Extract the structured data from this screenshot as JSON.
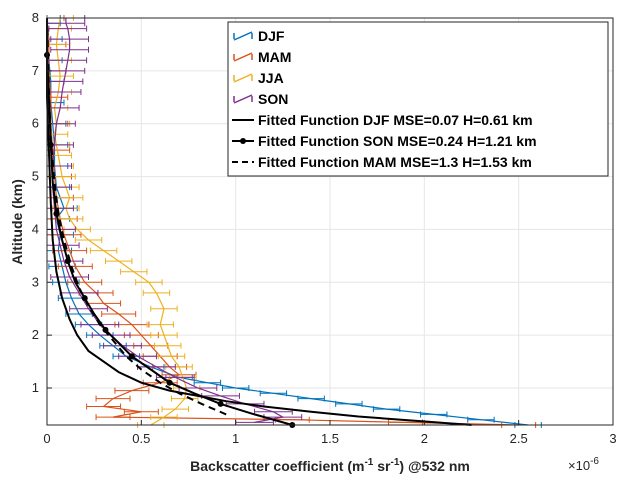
{
  "chart_data": {
    "type": "line",
    "xlabel": "Backscatter coefficient (m",
    "xlabel_sup1": "-1",
    "xlabel_mid": " sr",
    "xlabel_sup2": "-1",
    "xlabel_end": ") @532 nm",
    "ylabel": "Altitude (km)",
    "xlim": [
      0,
      3
    ],
    "ylim": [
      0.3,
      8
    ],
    "x_multiplier_base": "×10",
    "x_multiplier_exp": "-6",
    "x_ticks": [
      "0",
      "0.5",
      "1",
      "1.5",
      "2",
      "2.5",
      "3"
    ],
    "y_ticks": [
      "1",
      "2",
      "3",
      "4",
      "5",
      "6",
      "7",
      "8"
    ],
    "legend_position": "top-right",
    "colors": {
      "DJF": "#0072BD",
      "MAM": "#D95319",
      "JJA": "#EDB120",
      "SON": "#7E2F8E",
      "fit": "#000000"
    },
    "series": [
      {
        "name": "DJF",
        "key": "DJF",
        "style": "errorbar",
        "err": 0.07,
        "x": [
          2.55,
          2.3,
          2.05,
          1.8,
          1.6,
          1.4,
          1.2,
          1.0,
          0.85,
          0.7,
          0.55,
          0.42,
          0.35,
          0.28,
          0.22,
          0.17,
          0.13,
          0.1,
          0.08,
          0.06,
          0.07,
          0.05,
          0.09,
          0.05,
          0.04,
          0.04,
          0.03,
          0.02,
          0.02,
          0.01,
          0.01,
          0.0,
          0.0
        ],
        "y": [
          0.3,
          0.4,
          0.5,
          0.6,
          0.7,
          0.8,
          0.9,
          1.0,
          1.1,
          1.2,
          1.4,
          1.6,
          1.8,
          2.0,
          2.2,
          2.4,
          2.7,
          3.0,
          3.3,
          3.6,
          3.9,
          4.2,
          4.4,
          4.8,
          5.2,
          5.6,
          6.0,
          6.4,
          6.8,
          7.2,
          7.6,
          7.9,
          8.0
        ]
      },
      {
        "name": "MAM",
        "key": "MAM",
        "style": "errorbar",
        "err": 0.09,
        "x": [
          2.5,
          1.9,
          1.3,
          0.35,
          0.5,
          0.3,
          0.35,
          0.45,
          0.6,
          0.7,
          0.65,
          0.6,
          0.55,
          0.5,
          0.45,
          0.38,
          0.3,
          0.26,
          0.2,
          0.15,
          0.12,
          0.09,
          0.07,
          0.05,
          0.04,
          0.03,
          0.02,
          0.02,
          0.01,
          0.01,
          0.0
        ],
        "y": [
          0.3,
          0.35,
          0.4,
          0.45,
          0.55,
          0.65,
          0.8,
          0.95,
          1.1,
          1.25,
          1.4,
          1.6,
          1.8,
          2.0,
          2.2,
          2.4,
          2.6,
          2.8,
          3.0,
          3.3,
          3.6,
          3.9,
          4.2,
          4.6,
          5.0,
          5.5,
          6.0,
          6.5,
          7.0,
          7.5,
          8.0
        ]
      },
      {
        "name": "JJA",
        "key": "JJA",
        "style": "errorbar",
        "err": 0.07,
        "x": [
          0.55,
          0.62,
          0.68,
          0.73,
          0.74,
          0.72,
          0.7,
          0.66,
          0.64,
          0.62,
          0.6,
          0.62,
          0.58,
          0.54,
          0.46,
          0.38,
          0.3,
          0.22,
          0.16,
          0.12,
          0.1,
          0.12,
          0.1,
          0.08,
          0.07,
          0.06,
          0.05,
          0.04,
          0.05,
          0.04,
          0.06,
          0.07,
          0.06,
          0.05,
          0.06,
          0.07
        ],
        "y": [
          0.3,
          0.45,
          0.6,
          0.8,
          1.0,
          1.2,
          1.4,
          1.6,
          1.8,
          2.0,
          2.2,
          2.5,
          2.8,
          3.0,
          3.2,
          3.4,
          3.6,
          3.8,
          4.0,
          4.2,
          4.4,
          4.6,
          4.8,
          5.0,
          5.2,
          5.4,
          5.6,
          5.8,
          6.0,
          6.3,
          6.6,
          6.9,
          7.2,
          7.5,
          7.8,
          8.0
        ]
      },
      {
        "name": "SON",
        "key": "SON",
        "style": "errorbar",
        "err": 0.1,
        "x": [
          1.1,
          1.25,
          1.2,
          1.05,
          0.92,
          0.8,
          0.68,
          0.58,
          0.48,
          0.4,
          0.34,
          0.28,
          0.22,
          0.17,
          0.12,
          0.09,
          0.07,
          0.05,
          0.04,
          0.03,
          0.03,
          0.04,
          0.05,
          0.07,
          0.08,
          0.09,
          0.1,
          0.11,
          0.12,
          0.12,
          0.11,
          0.1,
          0.1
        ],
        "y": [
          0.35,
          0.45,
          0.55,
          0.7,
          0.85,
          1.0,
          1.2,
          1.4,
          1.6,
          1.8,
          2.0,
          2.2,
          2.5,
          2.8,
          3.1,
          3.4,
          3.7,
          4.0,
          4.4,
          4.8,
          5.2,
          5.6,
          6.0,
          6.3,
          6.6,
          6.8,
          7.0,
          7.2,
          7.4,
          7.6,
          7.8,
          7.9,
          8.0
        ]
      },
      {
        "name": "Fitted Function DJF MSE=0.07 H=0.61 km",
        "key": "fit",
        "style": "solid",
        "x": [
          2.25,
          1.95,
          1.65,
          1.4,
          1.15,
          0.95,
          0.8,
          0.65,
          0.5,
          0.38,
          0.3,
          0.22,
          0.16,
          0.12,
          0.08,
          0.05,
          0.03,
          0.02,
          0.01,
          0.0,
          0.0
        ],
        "y": [
          0.3,
          0.38,
          0.46,
          0.55,
          0.65,
          0.75,
          0.85,
          0.95,
          1.1,
          1.3,
          1.5,
          1.7,
          2.0,
          2.3,
          2.7,
          3.2,
          3.8,
          4.5,
          5.5,
          6.5,
          8.0
        ]
      },
      {
        "name": "Fitted Function SON MSE=0.24 H=1.21 km",
        "key": "fit",
        "style": "dot",
        "x": [
          1.3,
          1.1,
          0.92,
          0.78,
          0.65,
          0.55,
          0.45,
          0.38,
          0.31,
          0.25,
          0.2,
          0.15,
          0.11,
          0.08,
          0.05,
          0.03,
          0.02,
          0.01,
          0.0,
          0.0
        ],
        "y": [
          0.3,
          0.5,
          0.7,
          0.9,
          1.1,
          1.35,
          1.6,
          1.85,
          2.1,
          2.4,
          2.7,
          3.0,
          3.4,
          3.8,
          4.3,
          4.9,
          5.6,
          6.5,
          7.3,
          8.0
        ]
      },
      {
        "name": "Fitted Function MAM MSE=1.3 H=1.53 km",
        "key": "fit",
        "style": "dash",
        "x": [
          0.95,
          0.82,
          0.7,
          0.6,
          0.5,
          0.42,
          0.35,
          0.28,
          0.22,
          0.17,
          0.13,
          0.09,
          0.06,
          0.04,
          0.02,
          0.01,
          0.0
        ],
        "y": [
          0.5,
          0.7,
          0.9,
          1.1,
          1.35,
          1.6,
          1.9,
          2.2,
          2.55,
          2.9,
          3.3,
          3.8,
          4.3,
          4.9,
          5.7,
          6.6,
          8.0
        ]
      }
    ]
  }
}
